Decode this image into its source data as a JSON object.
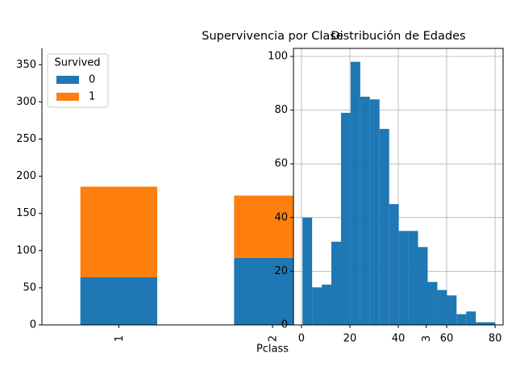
{
  "chart_data": [
    {
      "type": "bar",
      "stacked": true,
      "title": "Supervivencia por Clase",
      "xlabel": "Pclass",
      "categories": [
        "1",
        "2",
        "3"
      ],
      "legend_title": "Survived",
      "legend": "upper left",
      "series": [
        {
          "name": "0",
          "color": "#1f77b4",
          "values": [
            64,
            90,
            null
          ]
        },
        {
          "name": "1",
          "color": "#ff7f0e",
          "values": [
            122,
            84,
            null
          ]
        }
      ],
      "ylim": [
        0,
        372
      ],
      "yticks": [
        0,
        50,
        100,
        150,
        200,
        250,
        300,
        350
      ]
    },
    {
      "type": "histogram",
      "title": "Distribución de Edades",
      "color": "#1f77b4",
      "grid": true,
      "bins": [
        0.42,
        4.4,
        8.38,
        12.36,
        16.34,
        20.32,
        24.29,
        28.27,
        32.25,
        36.23,
        40.21,
        44.19,
        48.17,
        52.15,
        56.13,
        60.11,
        64.08,
        68.06,
        72.04,
        76.02,
        80
      ],
      "values": [
        40,
        14,
        15,
        31,
        79,
        98,
        85,
        84,
        73,
        45,
        35,
        35,
        29,
        16,
        13,
        11,
        4,
        5,
        1,
        1
      ],
      "xlim": [
        -3.3,
        83.3
      ],
      "xticks": [
        0,
        20,
        40,
        60,
        80
      ],
      "ylim": [
        0,
        103
      ],
      "yticks": [
        0,
        20,
        40,
        60,
        80,
        100
      ]
    }
  ]
}
